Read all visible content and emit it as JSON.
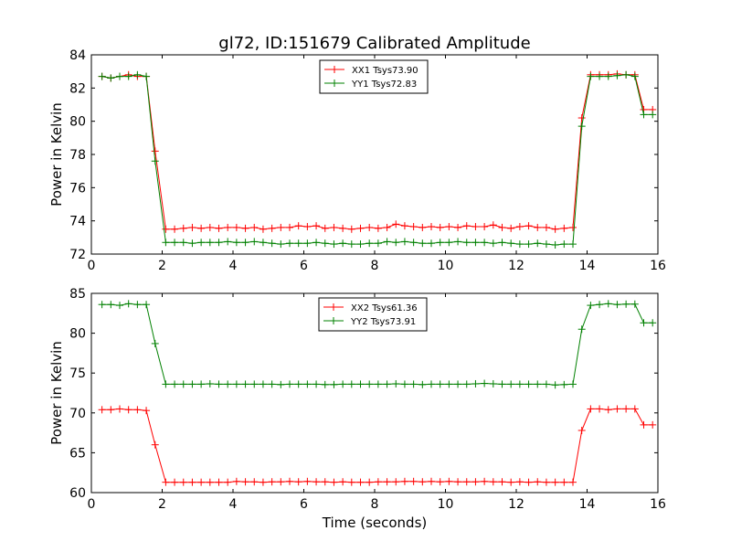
{
  "title": "gl72, ID:151679 Calibrated Amplitude",
  "chart_data": [
    {
      "type": "line",
      "ylabel": "Power in Kelvin",
      "xlabel": "",
      "xlim": [
        0,
        16
      ],
      "ylim": [
        72,
        84
      ],
      "xticks": [
        "0",
        "2",
        "4",
        "6",
        "8",
        "10",
        "12",
        "14",
        "16"
      ],
      "yticks": [
        "72",
        "74",
        "76",
        "78",
        "80",
        "82",
        "84"
      ],
      "legend_position": "top-center",
      "x": [
        0.3,
        0.55,
        0.8,
        1.05,
        1.3,
        1.55,
        1.8,
        2.1,
        2.35,
        2.6,
        2.85,
        3.1,
        3.35,
        3.6,
        3.85,
        4.1,
        4.35,
        4.6,
        4.85,
        5.1,
        5.35,
        5.6,
        5.85,
        6.1,
        6.35,
        6.6,
        6.85,
        7.1,
        7.35,
        7.6,
        7.85,
        8.1,
        8.35,
        8.6,
        8.85,
        9.1,
        9.35,
        9.6,
        9.85,
        10.1,
        10.35,
        10.6,
        10.85,
        11.1,
        11.35,
        11.6,
        11.85,
        12.1,
        12.35,
        12.6,
        12.85,
        13.1,
        13.35,
        13.6,
        13.85,
        14.1,
        14.35,
        14.6,
        14.85,
        15.1,
        15.35,
        15.6,
        15.85
      ],
      "series": [
        {
          "name": "XX1 Tsys73.90",
          "color": "#ff0000",
          "values": [
            82.7,
            82.6,
            82.7,
            82.8,
            82.7,
            82.7,
            78.2,
            73.5,
            73.5,
            73.55,
            73.6,
            73.55,
            73.6,
            73.55,
            73.6,
            73.6,
            73.55,
            73.6,
            73.5,
            73.55,
            73.6,
            73.6,
            73.7,
            73.65,
            73.7,
            73.55,
            73.6,
            73.55,
            73.5,
            73.55,
            73.6,
            73.55,
            73.6,
            73.8,
            73.7,
            73.65,
            73.6,
            73.65,
            73.6,
            73.65,
            73.6,
            73.7,
            73.65,
            73.65,
            73.75,
            73.6,
            73.55,
            73.65,
            73.7,
            73.6,
            73.6,
            73.5,
            73.55,
            73.6,
            80.2,
            82.8,
            82.8,
            82.8,
            82.85,
            82.8,
            82.8,
            80.7,
            80.7
          ]
        },
        {
          "name": "YY1 Tsys72.83",
          "color": "#008000",
          "values": [
            82.7,
            82.6,
            82.7,
            82.7,
            82.8,
            82.7,
            77.6,
            72.7,
            72.7,
            72.7,
            72.65,
            72.7,
            72.7,
            72.7,
            72.75,
            72.7,
            72.7,
            72.75,
            72.7,
            72.65,
            72.6,
            72.65,
            72.65,
            72.65,
            72.7,
            72.65,
            72.6,
            72.65,
            72.6,
            72.6,
            72.65,
            72.65,
            72.75,
            72.7,
            72.75,
            72.7,
            72.65,
            72.65,
            72.7,
            72.7,
            72.75,
            72.7,
            72.7,
            72.7,
            72.65,
            72.7,
            72.65,
            72.6,
            72.6,
            72.65,
            72.6,
            72.55,
            72.6,
            72.6,
            79.7,
            82.7,
            82.7,
            82.7,
            82.75,
            82.8,
            82.7,
            80.4,
            80.4
          ]
        }
      ]
    },
    {
      "type": "line",
      "ylabel": "Power in Kelvin",
      "xlabel": "Time (seconds)",
      "xlim": [
        0,
        16
      ],
      "ylim": [
        60,
        85
      ],
      "xticks": [
        "0",
        "2",
        "4",
        "6",
        "8",
        "10",
        "12",
        "14",
        "16"
      ],
      "yticks": [
        "60",
        "65",
        "70",
        "75",
        "80",
        "85"
      ],
      "legend_position": "top-center",
      "x": [
        0.3,
        0.55,
        0.8,
        1.05,
        1.3,
        1.55,
        1.8,
        2.1,
        2.35,
        2.6,
        2.85,
        3.1,
        3.35,
        3.6,
        3.85,
        4.1,
        4.35,
        4.6,
        4.85,
        5.1,
        5.35,
        5.6,
        5.85,
        6.1,
        6.35,
        6.6,
        6.85,
        7.1,
        7.35,
        7.6,
        7.85,
        8.1,
        8.35,
        8.6,
        8.85,
        9.1,
        9.35,
        9.6,
        9.85,
        10.1,
        10.35,
        10.6,
        10.85,
        11.1,
        11.35,
        11.6,
        11.85,
        12.1,
        12.35,
        12.6,
        12.85,
        13.1,
        13.35,
        13.6,
        13.85,
        14.1,
        14.35,
        14.6,
        14.85,
        15.1,
        15.35,
        15.6,
        15.85
      ],
      "series": [
        {
          "name": "XX2 Tsys61.36",
          "color": "#ff0000",
          "values": [
            70.4,
            70.4,
            70.5,
            70.4,
            70.4,
            70.3,
            66.0,
            61.3,
            61.3,
            61.3,
            61.3,
            61.3,
            61.3,
            61.3,
            61.3,
            61.4,
            61.35,
            61.35,
            61.3,
            61.35,
            61.35,
            61.4,
            61.35,
            61.4,
            61.35,
            61.35,
            61.3,
            61.35,
            61.3,
            61.3,
            61.3,
            61.35,
            61.35,
            61.35,
            61.4,
            61.4,
            61.35,
            61.4,
            61.35,
            61.4,
            61.35,
            61.35,
            61.35,
            61.4,
            61.35,
            61.35,
            61.3,
            61.35,
            61.3,
            61.35,
            61.3,
            61.3,
            61.3,
            61.3,
            67.8,
            70.5,
            70.5,
            70.4,
            70.5,
            70.5,
            70.5,
            68.5,
            68.5
          ]
        },
        {
          "name": "YY2 Tsys73.91",
          "color": "#008000",
          "values": [
            83.6,
            83.6,
            83.5,
            83.7,
            83.6,
            83.6,
            78.7,
            73.6,
            73.6,
            73.6,
            73.6,
            73.6,
            73.65,
            73.6,
            73.6,
            73.6,
            73.6,
            73.6,
            73.6,
            73.6,
            73.55,
            73.6,
            73.6,
            73.6,
            73.6,
            73.55,
            73.55,
            73.6,
            73.6,
            73.6,
            73.6,
            73.6,
            73.6,
            73.65,
            73.6,
            73.6,
            73.55,
            73.6,
            73.6,
            73.6,
            73.6,
            73.6,
            73.65,
            73.7,
            73.65,
            73.6,
            73.6,
            73.6,
            73.6,
            73.6,
            73.6,
            73.5,
            73.55,
            73.6,
            80.5,
            83.5,
            83.6,
            83.7,
            83.6,
            83.65,
            83.65,
            81.3,
            81.3
          ]
        }
      ]
    }
  ]
}
